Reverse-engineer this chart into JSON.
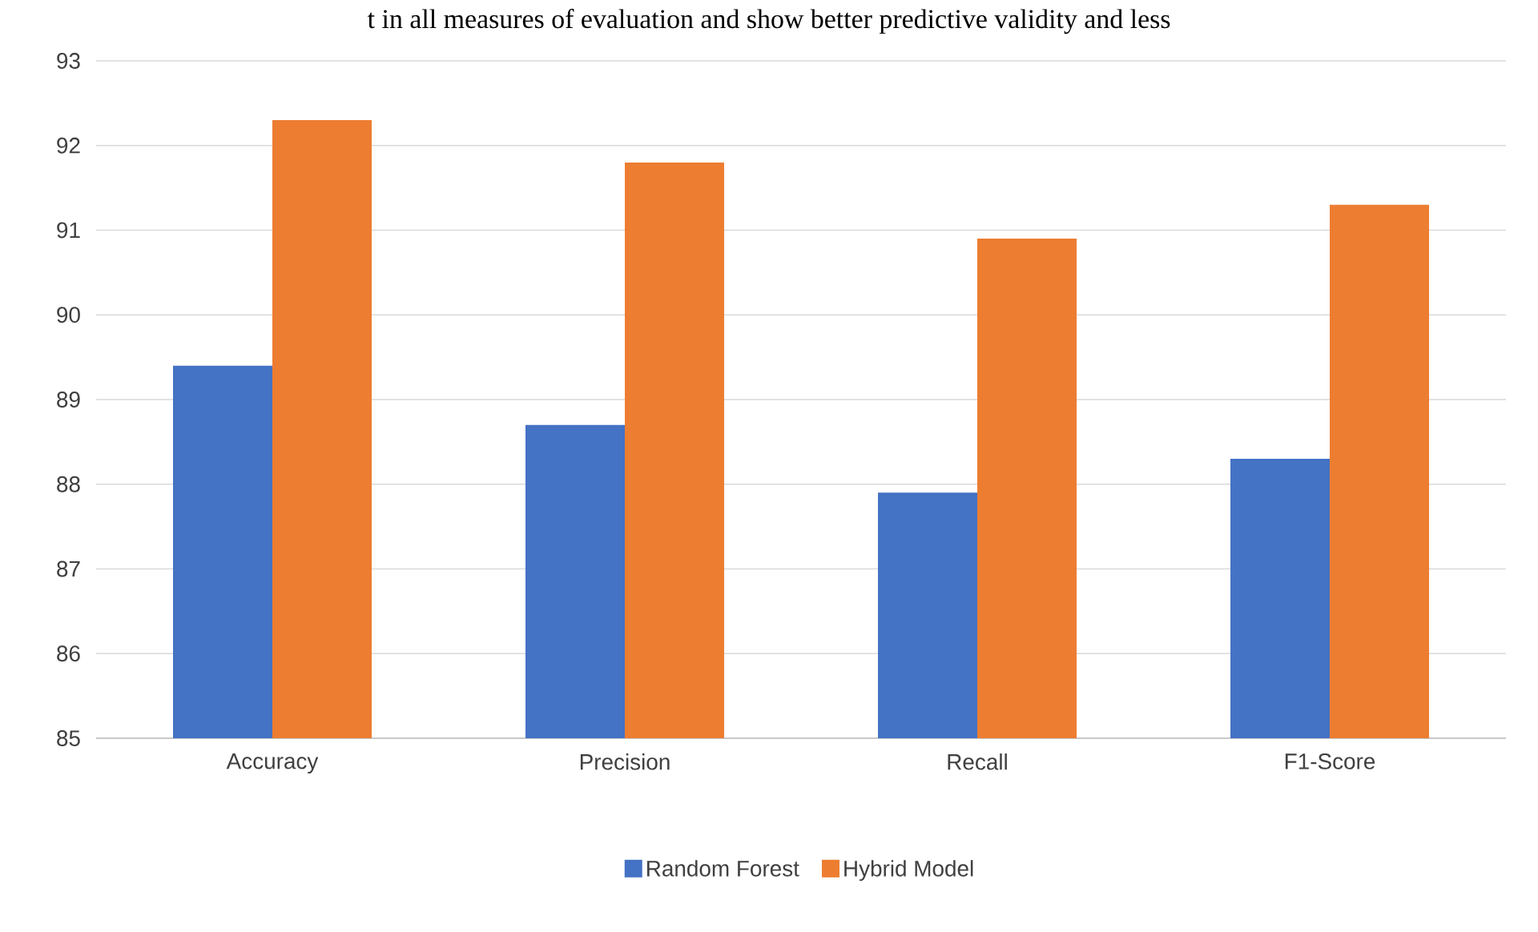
{
  "chart_data": {
    "type": "bar",
    "categories": [
      "Accuracy",
      "Precision",
      "Recall",
      "F1-Score"
    ],
    "series": [
      {
        "name": "Random Forest",
        "color": "#4472c4",
        "values": [
          89.4,
          88.7,
          87.9,
          88.3
        ]
      },
      {
        "name": "Hybrid Model",
        "color": "#ed7d31",
        "values": [
          92.3,
          91.8,
          90.9,
          91.3
        ]
      }
    ],
    "ylim": [
      85,
      93
    ],
    "yticks": [
      85,
      86,
      87,
      88,
      89,
      90,
      91,
      92,
      93
    ],
    "grid": "y",
    "legend": "bottom",
    "annotations": [
      "t in all measures of evaluation and show better predictive validity and less"
    ]
  }
}
